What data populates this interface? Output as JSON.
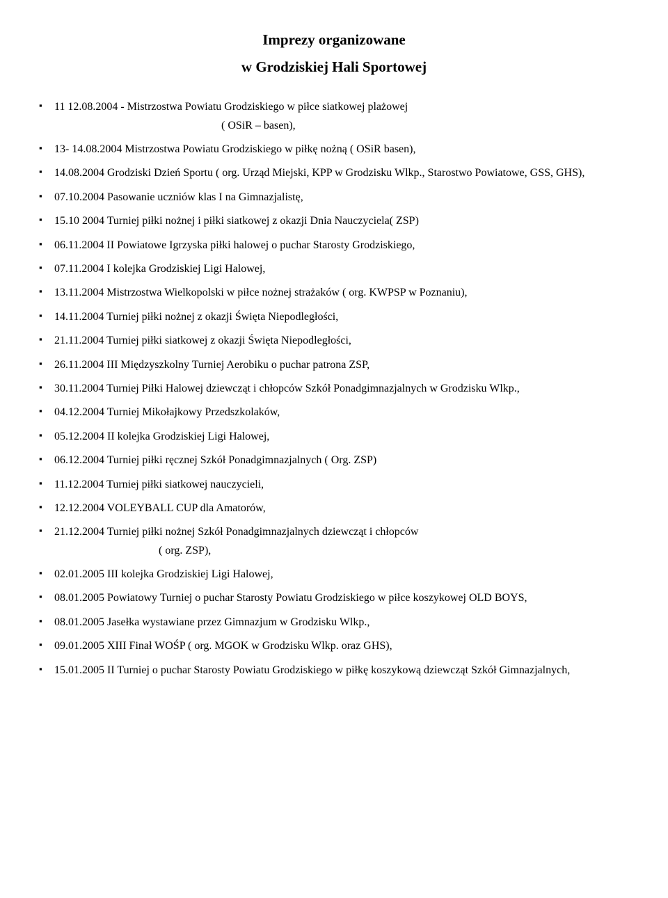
{
  "title": "Imprezy organizowane",
  "subtitle": "w Grodziskiej Hali Sportowej",
  "items": [
    {
      "text": "11 12.08.2004 - Mistrzostwa Powiatu Grodziskiego w piłce siatkowej plażowej",
      "cont": "( OSiR – basen),",
      "contClass": "indent-a"
    },
    {
      "text": "13- 14.08.2004 Mistrzostwa Powiatu Grodziskiego w piłkę nożną ( OSiR basen),"
    },
    {
      "text": "14.08.2004 Grodziski Dzień Sportu ( org. Urząd Miejski, KPP w Grodzisku Wlkp., Starostwo Powiatowe, GSS, GHS),"
    },
    {
      "text": "07.10.2004 Pasowanie uczniów klas I na Gimnazjalistę,"
    },
    {
      "text": "15.10 2004 Turniej piłki nożnej i piłki siatkowej z okazji Dnia Nauczyciela( ZSP)"
    },
    {
      "text": "06.11.2004 II Powiatowe Igrzyska piłki halowej o puchar Starosty Grodziskiego,"
    },
    {
      "text": "07.11.2004 I kolejka Grodziskiej Ligi Halowej,"
    },
    {
      "text": "13.11.2004 Mistrzostwa Wielkopolski w piłce nożnej strażaków ( org. KWPSP w Poznaniu),"
    },
    {
      "text": "14.11.2004 Turniej piłki nożnej z okazji Święta Niepodległości,"
    },
    {
      "text": "21.11.2004 Turniej piłki siatkowej z okazji Święta Niepodległości,"
    },
    {
      "text": "26.11.2004 III Międzyszkolny Turniej Aerobiku o puchar patrona ZSP,"
    },
    {
      "text": "30.11.2004 Turniej Piłki Halowej dziewcząt i  chłopców Szkół Ponadgimnazjalnych  w Grodzisku Wlkp.,"
    },
    {
      "text": "04.12.2004 Turniej Mikołajkowy Przedszkolaków,"
    },
    {
      "text": "05.12.2004 II kolejka Grodziskiej Ligi Halowej,"
    },
    {
      "text": "06.12.2004 Turniej piłki ręcznej Szkół Ponadgimnazjalnych ( Org. ZSP)"
    },
    {
      "text": "11.12.2004 Turniej piłki siatkowej nauczycieli,"
    },
    {
      "text": "12.12.2004 VOLEYBALL  CUP dla Amatorów,"
    },
    {
      "text": "21.12.2004 Turniej piłki nożnej Szkół Ponadgimnazjalnych dziewcząt i chłopców",
      "cont": "( org. ZSP),",
      "contClass": "indent-b"
    },
    {
      "text": "02.01.2005 III kolejka Grodziskiej Ligi Halowej,"
    },
    {
      "text": "08.01.2005 Powiatowy Turniej o puchar Starosty Powiatu Grodziskiego w piłce koszykowej OLD BOYS,"
    },
    {
      "text": "08.01.2005 Jasełka wystawiane przez Gimnazjum w Grodzisku Wlkp.,"
    },
    {
      "text": "09.01.2005 XIII Finał WOŚP ( org. MGOK w Grodzisku Wlkp. oraz GHS),"
    },
    {
      "text": "15.01.2005 II Turniej o puchar Starosty Powiatu Grodziskiego w piłkę koszykową dziewcząt Szkół Gimnazjalnych,"
    }
  ]
}
